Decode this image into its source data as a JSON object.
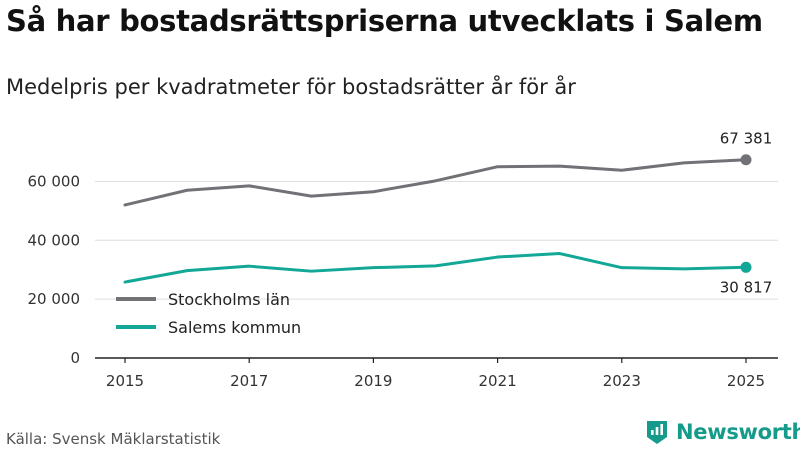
{
  "title": "Så har bostadsrättspriserna utvecklats i Salem",
  "subtitle": "Medelpris per kvadratmeter för bostadsrätter år för år",
  "source": "Källa: Svensk Mäklarstatistik",
  "brand": "Newsworthy",
  "colors": {
    "stockholm": "#727176",
    "salem": "#12a797",
    "grid": "#dddddd",
    "brand": "#159b8a"
  },
  "chart_data": {
    "type": "line",
    "title": "Så har bostadsrättspriserna utvecklats i Salem",
    "subtitle": "Medelpris per kvadratmeter för bostadsrätter år för år",
    "x": [
      2015,
      2016,
      2017,
      2018,
      2019,
      2020,
      2021,
      2022,
      2023,
      2024,
      2025
    ],
    "x_tick_labels": [
      "2015",
      "2017",
      "2019",
      "2021",
      "2023",
      "2025"
    ],
    "y_ticks": [
      0,
      20000,
      40000,
      60000
    ],
    "y_tick_labels": [
      "0",
      "20 000",
      "40 000",
      "60 000"
    ],
    "ylim": [
      0,
      70000
    ],
    "grid": true,
    "legend": "bottom-left",
    "series": [
      {
        "name": "Stockholms län",
        "color": "#727176",
        "values": [
          52000,
          57000,
          58500,
          55000,
          56500,
          60200,
          65000,
          65200,
          63800,
          66300,
          67381
        ],
        "end_label": "67 381"
      },
      {
        "name": "Salems kommun",
        "color": "#12a797",
        "values": [
          25800,
          29700,
          31200,
          29500,
          30700,
          31300,
          34300,
          35500,
          30700,
          30300,
          30817
        ],
        "end_label": "30 817"
      }
    ]
  }
}
